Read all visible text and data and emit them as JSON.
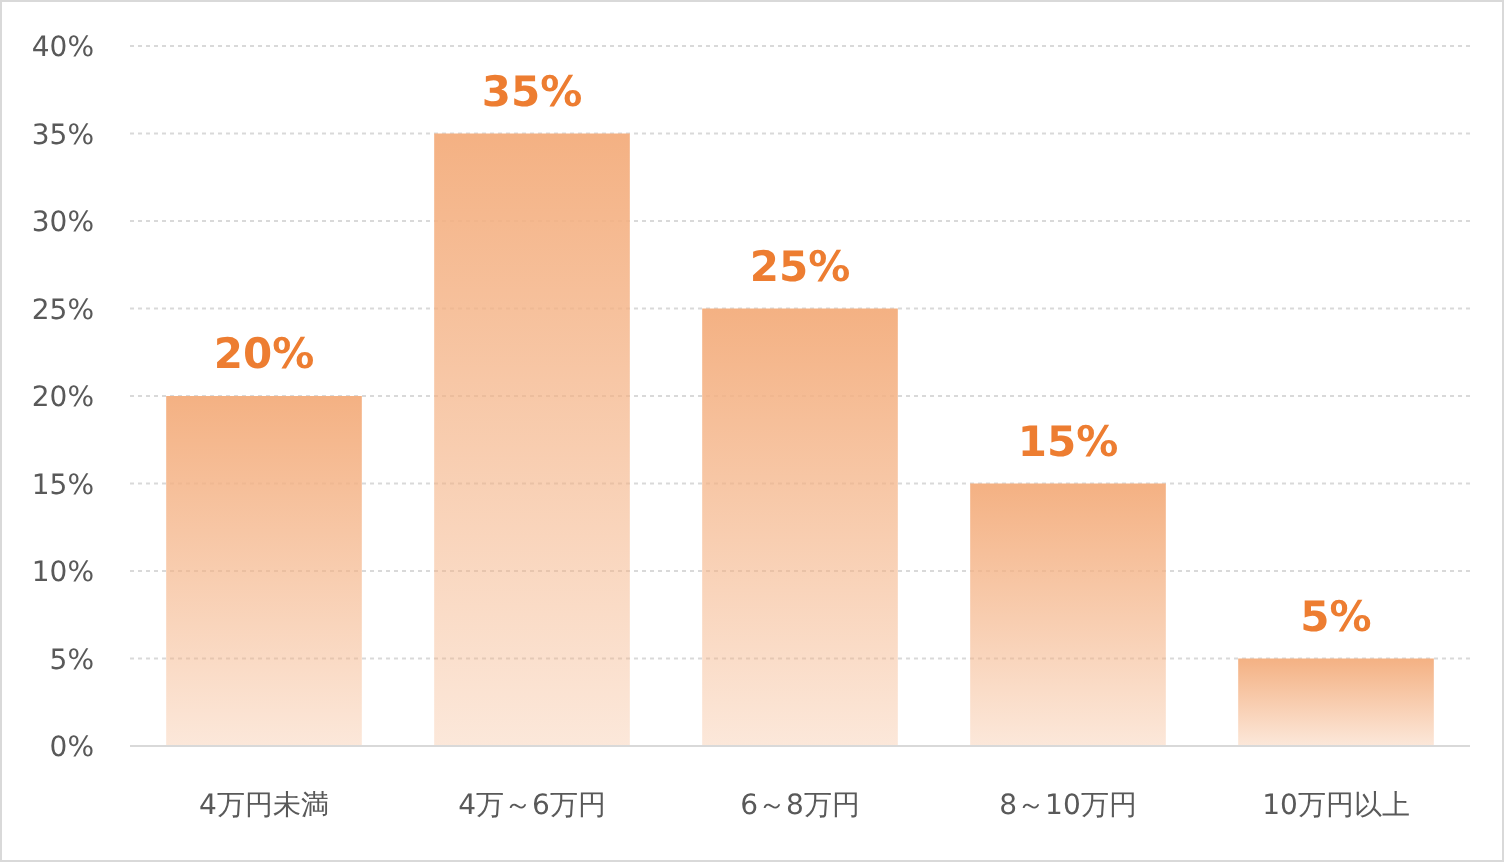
{
  "chart_data": {
    "type": "bar",
    "categories": [
      "4万円未満",
      "4万～6万円",
      "6～8万円",
      "8～10万円",
      "10万円以上"
    ],
    "values": [
      20,
      35,
      25,
      15,
      5
    ],
    "color": "#f4b183",
    "ylim": [
      0,
      40
    ],
    "yticks": [
      {
        "value": 0,
        "label": "0%"
      },
      {
        "value": 5,
        "label": "5%"
      },
      {
        "value": 10,
        "label": "10%"
      },
      {
        "value": 15,
        "label": "15%"
      },
      {
        "value": 20,
        "label": "20%"
      },
      {
        "value": 25,
        "label": "25%"
      },
      {
        "value": 30,
        "label": "30%"
      },
      {
        "value": 35,
        "label": "35%"
      },
      {
        "value": 40,
        "label": "40%"
      }
    ],
    "value_labels": [
      "20%",
      "35%",
      "25%",
      "15%",
      "5%"
    ],
    "grid": "y"
  }
}
